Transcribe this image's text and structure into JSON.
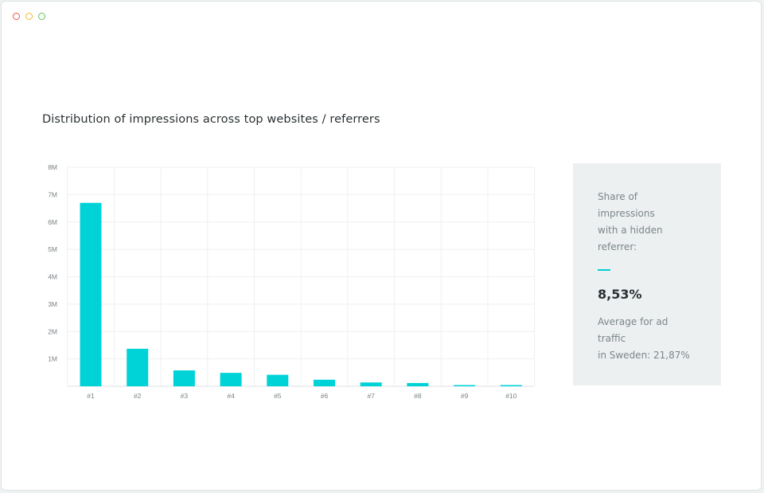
{
  "window": {
    "controls": [
      {
        "name": "close",
        "color": "#e8564f"
      },
      {
        "name": "minimize",
        "color": "#efbb2a"
      },
      {
        "name": "maximize",
        "color": "#5fc25a"
      }
    ]
  },
  "chart_data": {
    "type": "bar",
    "title": "Distribution of impressions across top websites / referrers",
    "xlabel": "",
    "ylabel": "",
    "categories": [
      "#1",
      "#2",
      "#3",
      "#4",
      "#5",
      "#6",
      "#7",
      "#8",
      "#9",
      "#10"
    ],
    "values": [
      6700000,
      1370000,
      580000,
      490000,
      420000,
      240000,
      140000,
      120000,
      40000,
      30000
    ],
    "ylim": [
      0,
      8000000
    ],
    "yticks": [
      {
        "value": 0,
        "label": ""
      },
      {
        "value": 1000000,
        "label": "1M"
      },
      {
        "value": 2000000,
        "label": "2M"
      },
      {
        "value": 3000000,
        "label": "3M"
      },
      {
        "value": 4000000,
        "label": "4M"
      },
      {
        "value": 5000000,
        "label": "5M"
      },
      {
        "value": 6000000,
        "label": "6M"
      },
      {
        "value": 7000000,
        "label": "7M"
      },
      {
        "value": 8000000,
        "label": "8M"
      }
    ],
    "grid": true,
    "bar_color": "#00d3d8",
    "grid_color": "#eef0f1"
  },
  "side_panel": {
    "label_line1": "Share of impressions",
    "label_line2": "with a hidden referrer:",
    "value": "8,53%",
    "note_line1": "Average for ad traffic",
    "note_line2": "in Sweden: 21,87%",
    "accent_color": "#00d1d6"
  }
}
